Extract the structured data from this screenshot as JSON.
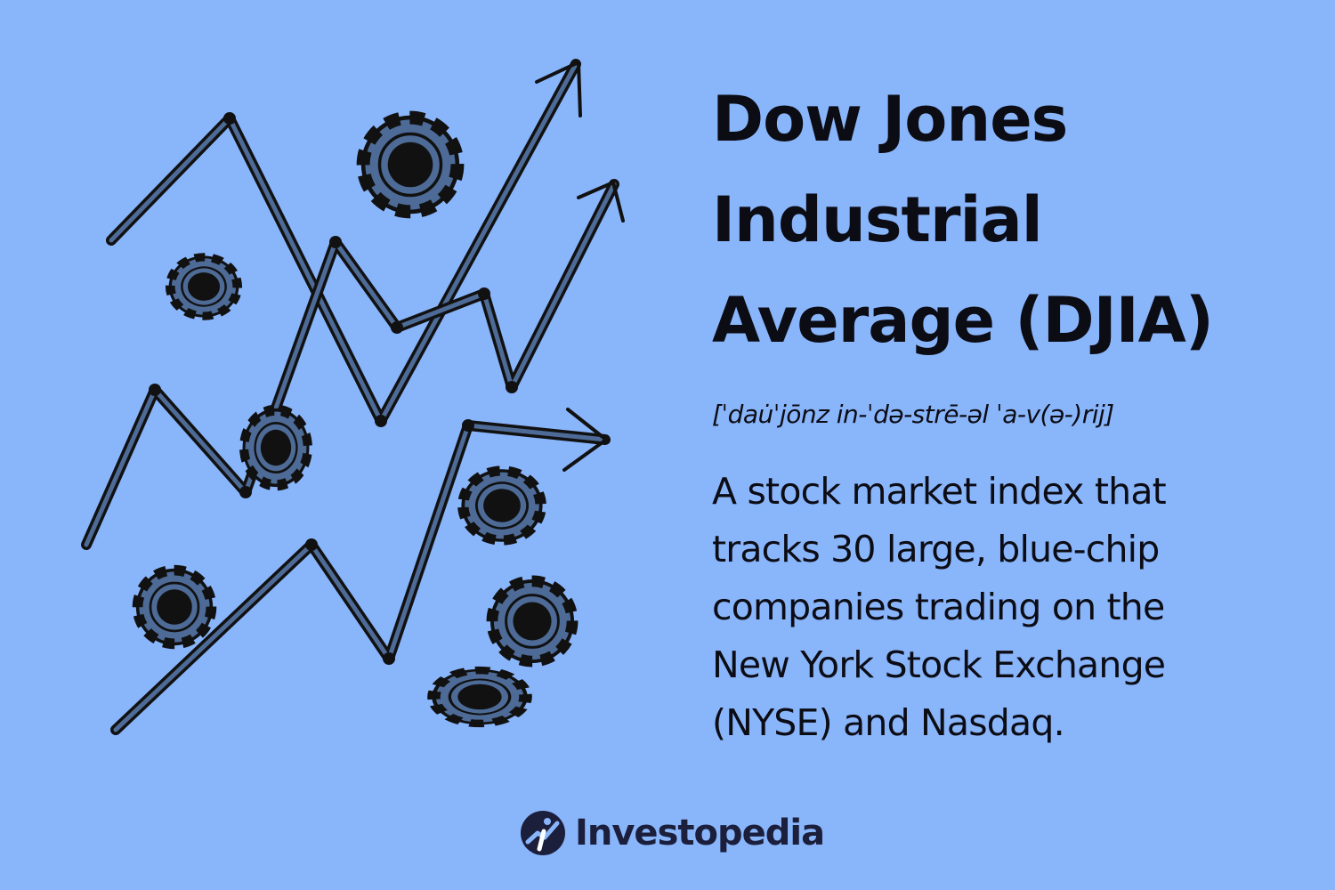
{
  "title": {
    "line1": "Dow Jones",
    "line2": "Industrial",
    "line3": "Average (DJIA)"
  },
  "pronunciation": "[ˈdau̇ˈjōnz in-ˈdə-strē-əl ˈa-v(ə-)rij]",
  "definition": {
    "line1": "A stock market index that",
    "line2": "tracks 30 large, blue-chip",
    "line3": "companies trading on the",
    "line4": "New York Stock Exchange",
    "line5": "(NYSE) and Nasdaq."
  },
  "brand": {
    "name": "Investopedia"
  },
  "colors": {
    "background": "#89b5fb",
    "text": "#0c0c14",
    "line_fill": "#4d6b96",
    "brand": "#1b1f3b"
  },
  "illustration": {
    "icons": [
      "trend-arrow-icon",
      "poker-chip-icon"
    ]
  }
}
